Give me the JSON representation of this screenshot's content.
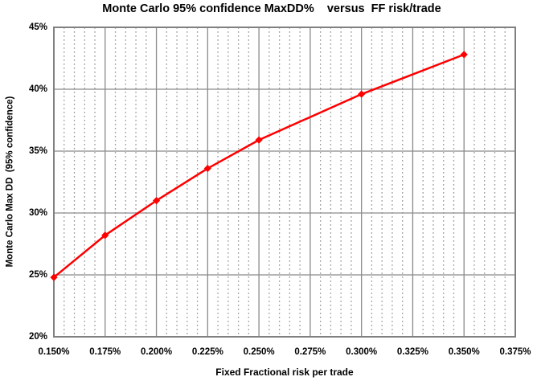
{
  "chart_data": {
    "type": "line",
    "title": "Monte Carlo 95% confidence MaxDD%    versus  FF risk/trade",
    "xlabel": "Fixed Fractional risk per trade",
    "ylabel": "Monte Carlo Max DD  (95% confidence)",
    "x_tick_labels": [
      "0.150%",
      "0.175%",
      "0.200%",
      "0.225%",
      "0.250%",
      "0.275%",
      "0.300%",
      "0.325%",
      "0.350%",
      "0.375%"
    ],
    "y_tick_labels": [
      "20%",
      "25%",
      "30%",
      "35%",
      "40%",
      "45%"
    ],
    "xlim": [
      0.15,
      0.375
    ],
    "ylim": [
      20,
      45
    ],
    "x_major_step": 0.025,
    "x_minor_step": 0.005,
    "y_major_step": 5,
    "grid": {
      "major_color": "#8a8a8a",
      "minor_color": "#9a9a9a",
      "border_color": "#808080",
      "minor_style": "dotted"
    },
    "legend": "none",
    "background": "#FFFFFF",
    "text_color": "#000000",
    "series": [
      {
        "name": "Monte Carlo 95% confidence MaxDD",
        "color": "#FF0000",
        "marker": "diamond",
        "x": [
          0.15,
          0.175,
          0.2,
          0.225,
          0.25,
          0.3,
          0.35
        ],
        "y": [
          24.8,
          28.2,
          31.0,
          33.6,
          35.9,
          39.6,
          42.8
        ]
      }
    ]
  }
}
